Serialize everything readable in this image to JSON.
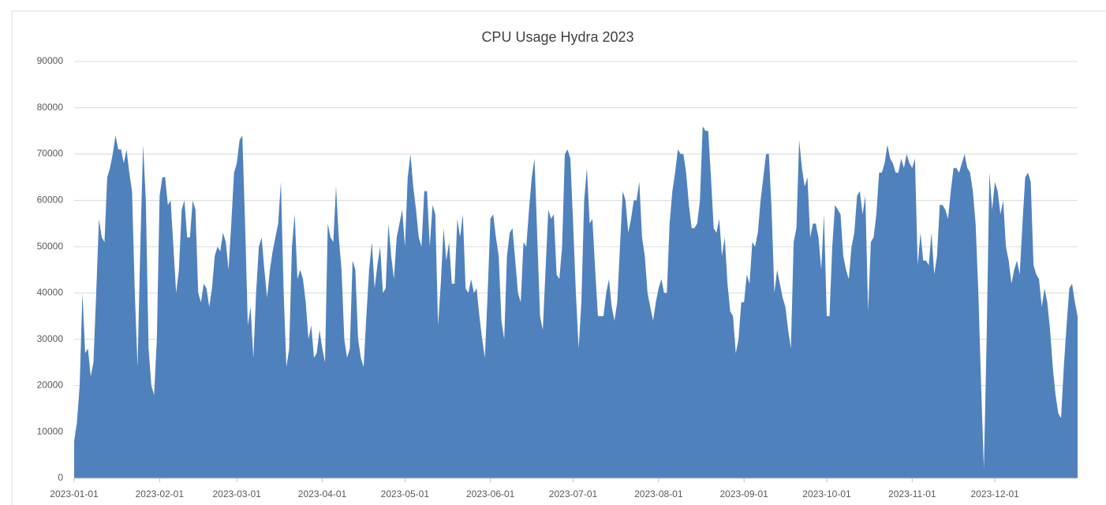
{
  "chart_data": {
    "type": "area",
    "title": "CPU Usage Hydra 2023",
    "categories": [
      "2023-01-01",
      null,
      null,
      null,
      null,
      null,
      null,
      null,
      null,
      null,
      null,
      null,
      null,
      null,
      null,
      null,
      null,
      null,
      null,
      null,
      null,
      null,
      null,
      null,
      null,
      null,
      null,
      null,
      null,
      null,
      null,
      "2023-02-01",
      null,
      null,
      null,
      null,
      null,
      null,
      null,
      null,
      null,
      null,
      null,
      null,
      null,
      null,
      null,
      null,
      null,
      null,
      null,
      null,
      null,
      null,
      null,
      null,
      null,
      null,
      null,
      "2023-03-01",
      null,
      null,
      null,
      null,
      null,
      null,
      null,
      null,
      null,
      null,
      null,
      null,
      null,
      null,
      null,
      null,
      null,
      null,
      null,
      null,
      null,
      null,
      null,
      null,
      null,
      null,
      null,
      null,
      null,
      null,
      "2023-04-01",
      null,
      null,
      null,
      null,
      null,
      null,
      null,
      null,
      null,
      null,
      null,
      null,
      null,
      null,
      null,
      null,
      null,
      null,
      null,
      null,
      null,
      null,
      null,
      null,
      null,
      null,
      null,
      null,
      null,
      "2023-05-01",
      null,
      null,
      null,
      null,
      null,
      null,
      null,
      null,
      null,
      null,
      null,
      null,
      null,
      null,
      null,
      null,
      null,
      null,
      null,
      null,
      null,
      null,
      null,
      null,
      null,
      null,
      null,
      null,
      null,
      null,
      "2023-06-01",
      null,
      null,
      null,
      null,
      null,
      null,
      null,
      null,
      null,
      null,
      null,
      null,
      null,
      null,
      null,
      null,
      null,
      null,
      null,
      null,
      null,
      null,
      null,
      null,
      null,
      null,
      null,
      null,
      null,
      "2023-07-01",
      null,
      null,
      null,
      null,
      null,
      null,
      null,
      null,
      null,
      null,
      null,
      null,
      null,
      null,
      null,
      null,
      null,
      null,
      null,
      null,
      null,
      null,
      null,
      null,
      null,
      null,
      null,
      null,
      null,
      null,
      "2023-08-01",
      null,
      null,
      null,
      null,
      null,
      null,
      null,
      null,
      null,
      null,
      null,
      null,
      null,
      null,
      null,
      null,
      null,
      null,
      null,
      null,
      null,
      null,
      null,
      null,
      null,
      null,
      null,
      null,
      null,
      null,
      "2023-09-01",
      null,
      null,
      null,
      null,
      null,
      null,
      null,
      null,
      null,
      null,
      null,
      null,
      null,
      null,
      null,
      null,
      null,
      null,
      null,
      null,
      null,
      null,
      null,
      null,
      null,
      null,
      null,
      null,
      null,
      "2023-10-01",
      null,
      null,
      null,
      null,
      null,
      null,
      null,
      null,
      null,
      null,
      null,
      null,
      null,
      null,
      null,
      null,
      null,
      null,
      null,
      null,
      null,
      null,
      null,
      null,
      null,
      null,
      null,
      null,
      null,
      null,
      "2023-11-01",
      null,
      null,
      null,
      null,
      null,
      null,
      null,
      null,
      null,
      null,
      null,
      null,
      null,
      null,
      null,
      null,
      null,
      null,
      null,
      null,
      null,
      null,
      null,
      null,
      null,
      null,
      null,
      null,
      null,
      "2023-12-01",
      null,
      null,
      null,
      null,
      null,
      null,
      null,
      null,
      null,
      null,
      null,
      null,
      null,
      null,
      null,
      null,
      null,
      null,
      null,
      null,
      null,
      null,
      null,
      null,
      null,
      null,
      null,
      null,
      null,
      null
    ],
    "values": [
      8000,
      12000,
      20000,
      40000,
      27000,
      28000,
      22000,
      25000,
      40000,
      56000,
      52000,
      51000,
      65000,
      67000,
      70000,
      74000,
      71000,
      71000,
      68000,
      71000,
      66000,
      62000,
      40000,
      24000,
      50000,
      72000,
      60000,
      28000,
      20000,
      18000,
      30000,
      61000,
      65000,
      65000,
      59000,
      60000,
      50000,
      40000,
      45000,
      58000,
      60000,
      52000,
      52000,
      60000,
      58000,
      40000,
      38000,
      42000,
      41000,
      37000,
      41000,
      48000,
      50000,
      49000,
      53000,
      51000,
      45000,
      55000,
      66000,
      68000,
      73000,
      74000,
      55000,
      33000,
      37000,
      26000,
      40000,
      50000,
      52000,
      45000,
      39000,
      45000,
      49000,
      52000,
      55000,
      64000,
      40000,
      24000,
      28000,
      50000,
      57000,
      43000,
      45000,
      43000,
      38000,
      30000,
      33000,
      26000,
      27000,
      32000,
      28000,
      25000,
      55000,
      52000,
      51000,
      63000,
      52000,
      45000,
      30000,
      26000,
      28000,
      47000,
      45000,
      30000,
      26000,
      24000,
      35000,
      45000,
      51000,
      41000,
      46000,
      50000,
      40000,
      41000,
      55000,
      48000,
      43000,
      52000,
      55000,
      58000,
      50000,
      65000,
      70000,
      63000,
      58000,
      52000,
      50000,
      62000,
      62000,
      50000,
      59000,
      57000,
      33000,
      42000,
      54000,
      47000,
      51000,
      42000,
      42000,
      56000,
      52000,
      57000,
      41000,
      40000,
      43000,
      40000,
      41000,
      35000,
      30000,
      26000,
      40000,
      56000,
      57000,
      52000,
      48000,
      34000,
      30000,
      48000,
      53000,
      54000,
      47000,
      40000,
      38000,
      51000,
      50000,
      58000,
      65000,
      69000,
      52000,
      35000,
      32000,
      45000,
      58000,
      56000,
      57000,
      44000,
      43000,
      50000,
      70000,
      71000,
      69000,
      55000,
      40000,
      28000,
      38000,
      60000,
      67000,
      55000,
      56000,
      45000,
      35000,
      35000,
      35000,
      40000,
      43000,
      37000,
      34000,
      38000,
      50000,
      62000,
      60000,
      53000,
      56000,
      60000,
      60000,
      64000,
      52000,
      48000,
      40000,
      37000,
      34000,
      38000,
      41000,
      43000,
      40000,
      40000,
      55000,
      62000,
      66000,
      71000,
      70000,
      70000,
      66000,
      59000,
      54000,
      54000,
      55000,
      60000,
      76000,
      75000,
      75000,
      65000,
      54000,
      53000,
      56000,
      48000,
      52000,
      42000,
      36000,
      35000,
      27000,
      30000,
      38000,
      38000,
      44000,
      42000,
      51000,
      50000,
      53000,
      60000,
      65000,
      70000,
      70000,
      58000,
      40000,
      45000,
      42000,
      39000,
      37000,
      32000,
      28000,
      51000,
      54000,
      73000,
      67000,
      63000,
      65000,
      52000,
      55000,
      55000,
      52000,
      45000,
      57000,
      35000,
      35000,
      50000,
      59000,
      58000,
      57000,
      48000,
      45000,
      43000,
      50000,
      53000,
      61000,
      62000,
      57000,
      61000,
      36000,
      51000,
      52000,
      57000,
      66000,
      66000,
      68000,
      72000,
      69000,
      68000,
      66000,
      66000,
      69000,
      67000,
      70000,
      68000,
      67000,
      69000,
      46000,
      53000,
      47000,
      47000,
      46000,
      53000,
      44000,
      48000,
      59000,
      59000,
      58000,
      56000,
      62000,
      67000,
      67000,
      66000,
      68000,
      70000,
      67000,
      66000,
      62000,
      55000,
      40000,
      20000,
      2000,
      30000,
      66000,
      58000,
      64000,
      62000,
      57000,
      60000,
      50000,
      47000,
      42000,
      45000,
      47000,
      44000,
      55000,
      65000,
      66000,
      64000,
      46000,
      44000,
      43000,
      37000,
      41000,
      38000,
      32000,
      24000,
      18000,
      14000,
      13000,
      24000,
      33000,
      41000,
      42000,
      38000,
      35000
    ],
    "color": "#4f81bd",
    "ylim": [
      0,
      90000
    ],
    "yticks": [
      0,
      10000,
      20000,
      30000,
      40000,
      50000,
      60000,
      70000,
      80000,
      90000
    ],
    "grid": true
  }
}
